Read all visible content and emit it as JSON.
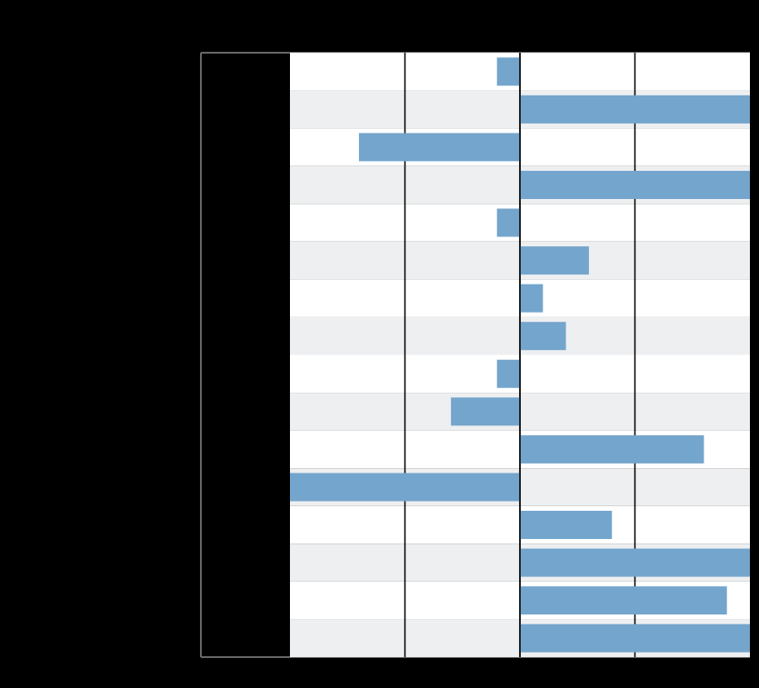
{
  "chart_data": {
    "type": "bar",
    "orientation": "horizontal",
    "title": "",
    "xlabel": "",
    "ylabel": "",
    "categories": [
      "",
      "",
      "",
      "",
      "",
      "",
      "",
      "",
      "",
      "",
      "",
      "",
      "",
      "",
      "",
      ""
    ],
    "values": [
      -1,
      10,
      -7,
      10,
      -1,
      3,
      1,
      2,
      -1,
      -3,
      8,
      -10,
      4,
      10,
      9,
      10
    ],
    "xlim": [
      -10,
      10
    ],
    "grid": true,
    "legend": "none",
    "colors": {
      "bar": "#74a5cc",
      "band_light": "#ffffff",
      "band_dark": "#eeeff1",
      "gridline": "#000000",
      "background": "#000000",
      "frame": "#666666"
    }
  }
}
